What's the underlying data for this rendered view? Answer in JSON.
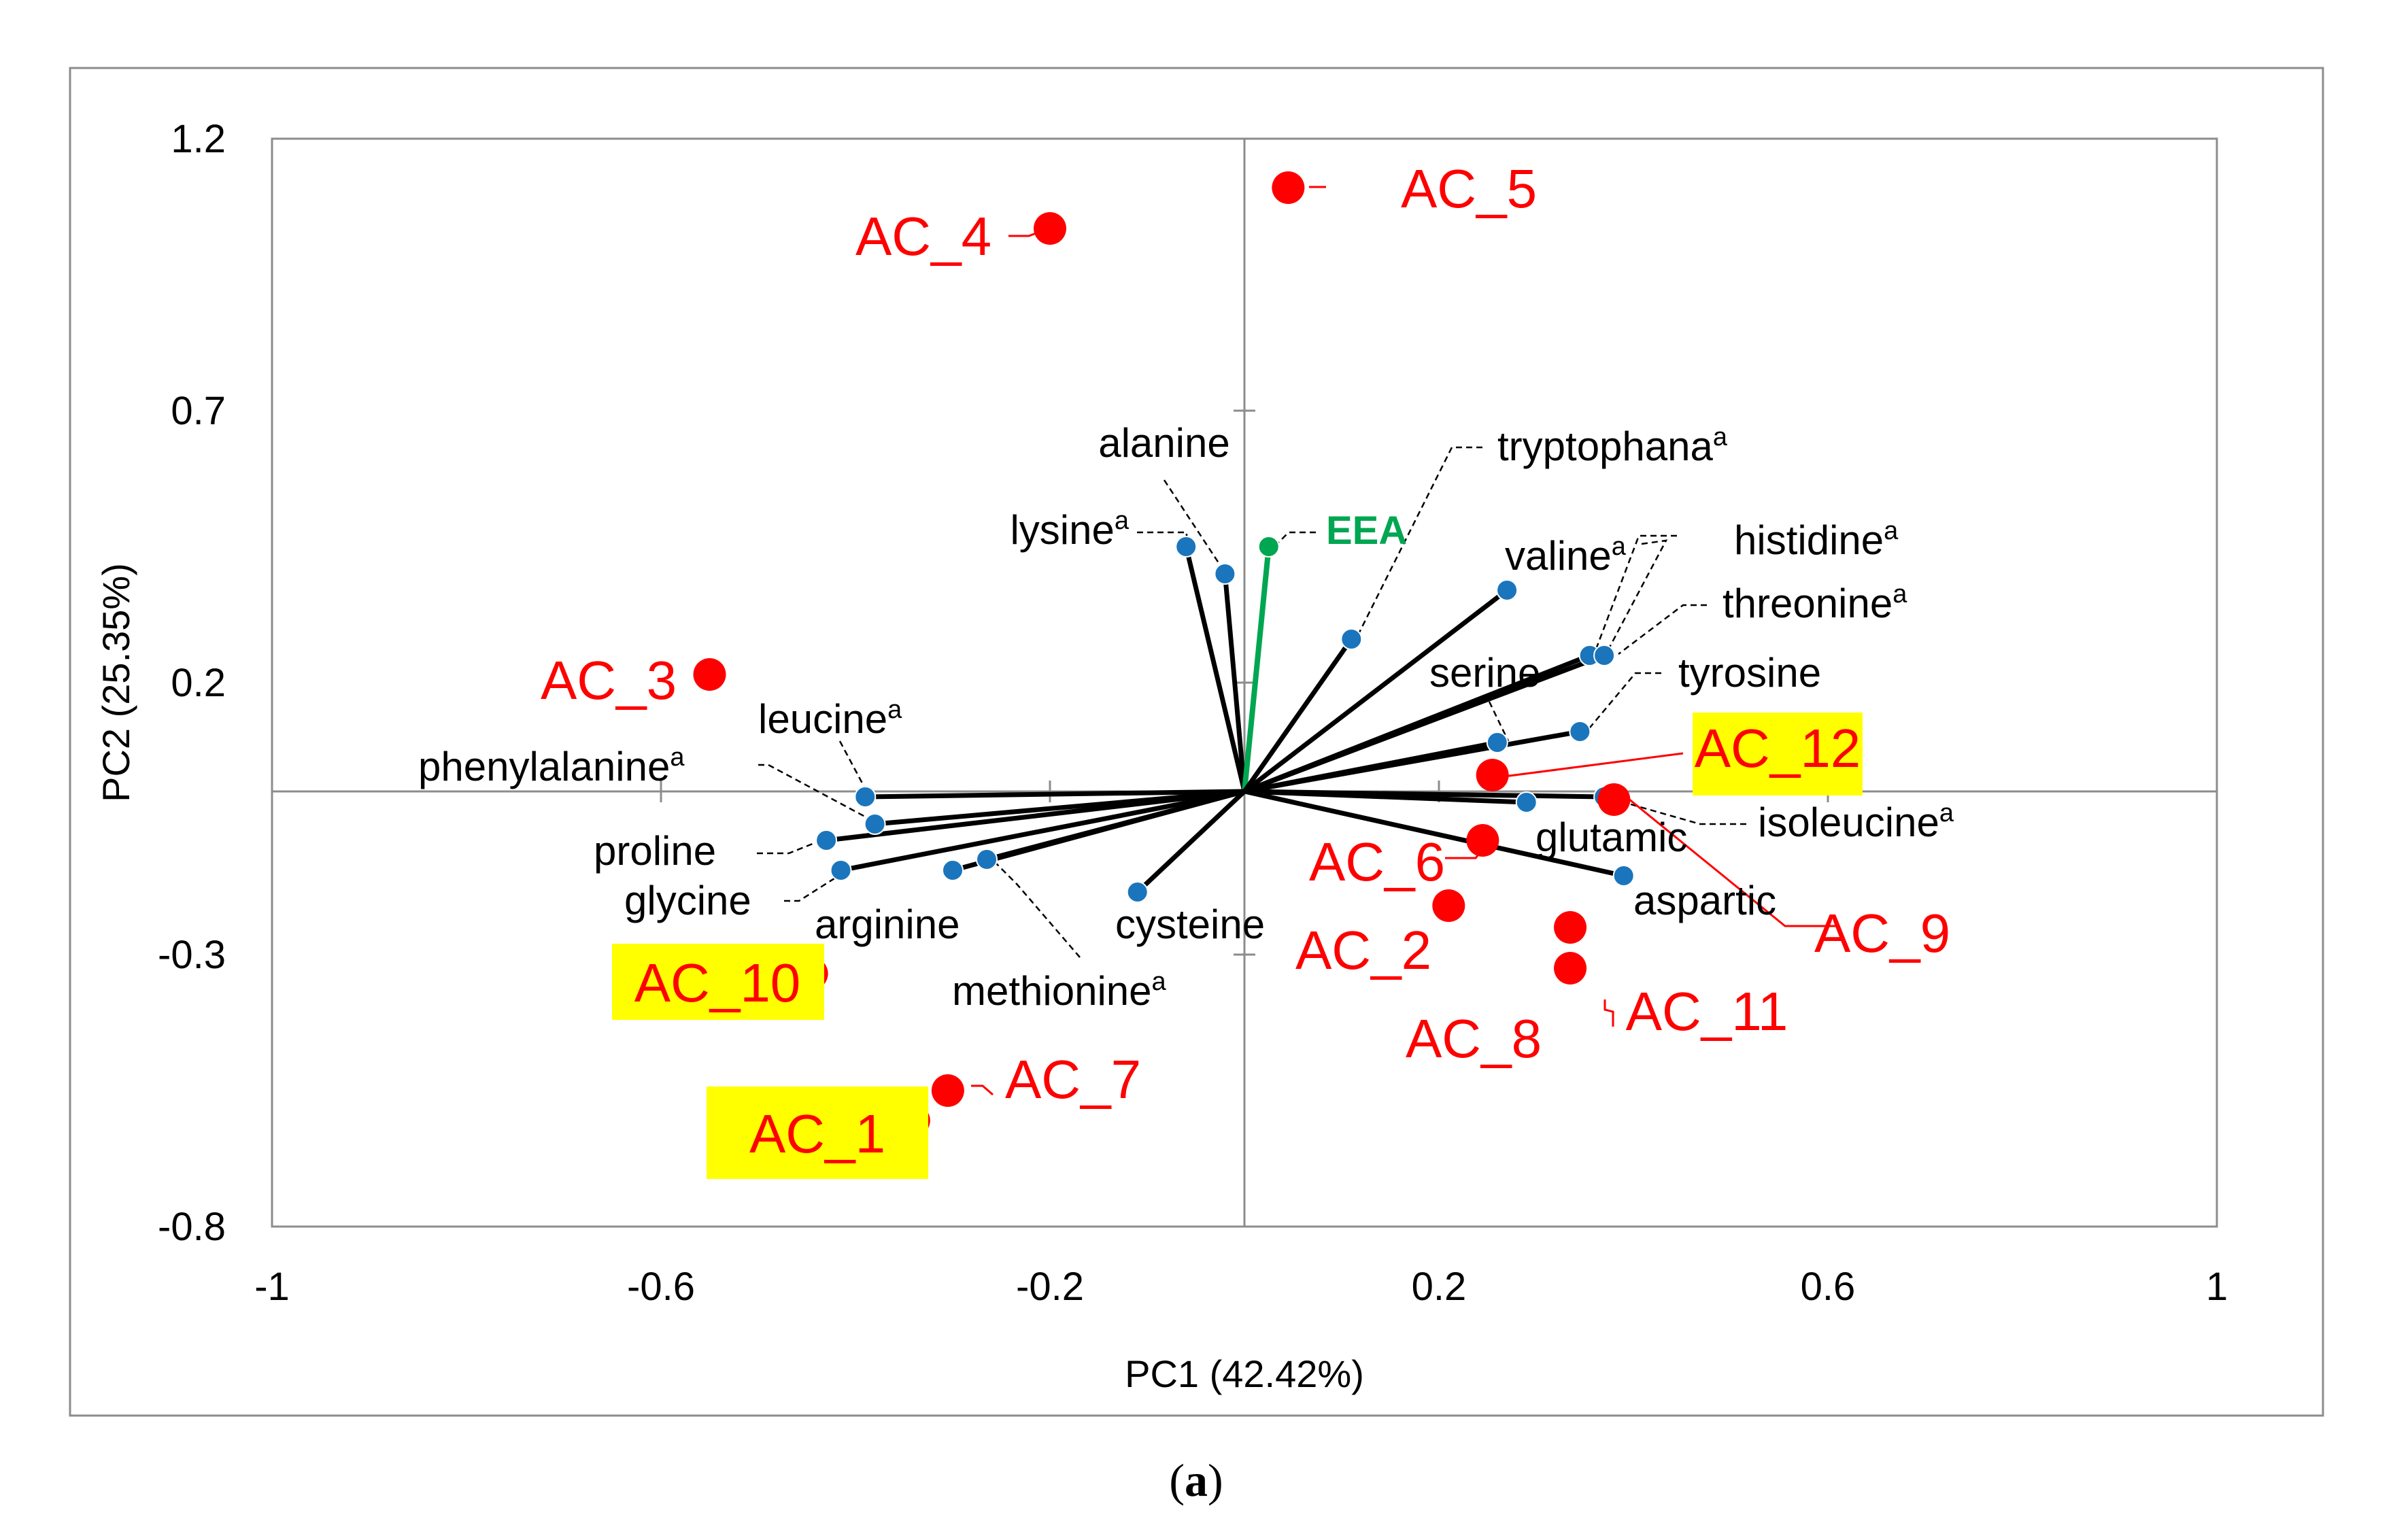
{
  "caption": {
    "open": "(",
    "letter": "a",
    "close": ")"
  },
  "colors": {
    "sample": "#ff0000",
    "variable": "#1a75bc",
    "eea": "#00a651",
    "highlight": "#ffff00",
    "vector": "#000000"
  },
  "chart_data": {
    "type": "scatter",
    "subtype": "pca-biplot",
    "xlabel": "PC1 (42.42%)",
    "ylabel": "PC2 (25.35%)",
    "xlim": [
      -1,
      1
    ],
    "ylim": [
      -0.8,
      1.2
    ],
    "xticks": [
      -1,
      -0.6,
      -0.2,
      0.2,
      0.6,
      1
    ],
    "yticks": [
      -0.8,
      -0.3,
      0.2,
      0.7,
      1.2
    ],
    "xtick_labels": [
      "-1",
      "-0.6",
      "-0.2",
      "0.2",
      "0.6",
      "1"
    ],
    "ytick_labels": [
      "-0.8",
      "-0.3",
      "0.2",
      "0.7",
      "1.2"
    ],
    "grid": false,
    "variables": [
      {
        "name": "alanine",
        "sup": "",
        "x": -0.02,
        "y": 0.4
      },
      {
        "name": "lysine",
        "sup": "a",
        "x": -0.06,
        "y": 0.45
      },
      {
        "name": "EEA",
        "sup": "",
        "x": 0.025,
        "y": 0.45,
        "color": "eea"
      },
      {
        "name": "tryptophana",
        "sup": "a",
        "x": 0.11,
        "y": 0.28
      },
      {
        "name": "valine",
        "sup": "a",
        "x": 0.27,
        "y": 0.37
      },
      {
        "name": "histidine",
        "sup": "a",
        "x": 0.355,
        "y": 0.25
      },
      {
        "name": "threonine",
        "sup": "a",
        "x": 0.37,
        "y": 0.25
      },
      {
        "name": "serine",
        "sup": "",
        "x": 0.26,
        "y": 0.09
      },
      {
        "name": "tyrosine",
        "sup": "",
        "x": 0.345,
        "y": 0.11
      },
      {
        "name": "isoleucine",
        "sup": "a",
        "x": 0.37,
        "y": -0.01
      },
      {
        "name": "glutamic",
        "sup": "",
        "x": 0.29,
        "y": -0.02
      },
      {
        "name": "aspartic",
        "sup": "",
        "x": 0.39,
        "y": -0.155
      },
      {
        "name": "cysteine",
        "sup": "",
        "x": -0.11,
        "y": -0.185
      },
      {
        "name": "methionine",
        "sup": "a",
        "x": -0.265,
        "y": -0.125
      },
      {
        "name": "arginine",
        "sup": "",
        "x": -0.3,
        "y": -0.145
      },
      {
        "name": "leucine",
        "sup": "a",
        "x": -0.39,
        "y": -0.01
      },
      {
        "name": "phenylalanine",
        "sup": "a",
        "x": -0.38,
        "y": -0.06
      },
      {
        "name": "proline",
        "sup": "",
        "x": -0.43,
        "y": -0.09
      },
      {
        "name": "glycine",
        "sup": "",
        "x": -0.415,
        "y": -0.145
      }
    ],
    "samples": [
      {
        "name": "AC_1",
        "x": -0.34,
        "y": -0.605,
        "highlight": true
      },
      {
        "name": "AC_2",
        "x": 0.21,
        "y": -0.21,
        "highlight": false
      },
      {
        "name": "AC_3",
        "x": -0.55,
        "y": 0.215,
        "highlight": false
      },
      {
        "name": "AC_4",
        "x": -0.2,
        "y": 1.035,
        "highlight": false
      },
      {
        "name": "AC_5",
        "x": 0.045,
        "y": 1.11,
        "highlight": false
      },
      {
        "name": "AC_6",
        "x": 0.245,
        "y": -0.09,
        "highlight": false
      },
      {
        "name": "AC_7",
        "x": -0.305,
        "y": -0.55,
        "highlight": false
      },
      {
        "name": "AC_8",
        "x": 0.335,
        "y": -0.25,
        "highlight": false
      },
      {
        "name": "AC_9",
        "x": 0.38,
        "y": -0.015,
        "highlight": false
      },
      {
        "name": "AC_10",
        "x": -0.445,
        "y": -0.335,
        "highlight": true
      },
      {
        "name": "AC_11",
        "x": 0.335,
        "y": -0.325,
        "highlight": false
      },
      {
        "name": "AC_12",
        "x": 0.255,
        "y": 0.03,
        "highlight": true
      }
    ]
  }
}
